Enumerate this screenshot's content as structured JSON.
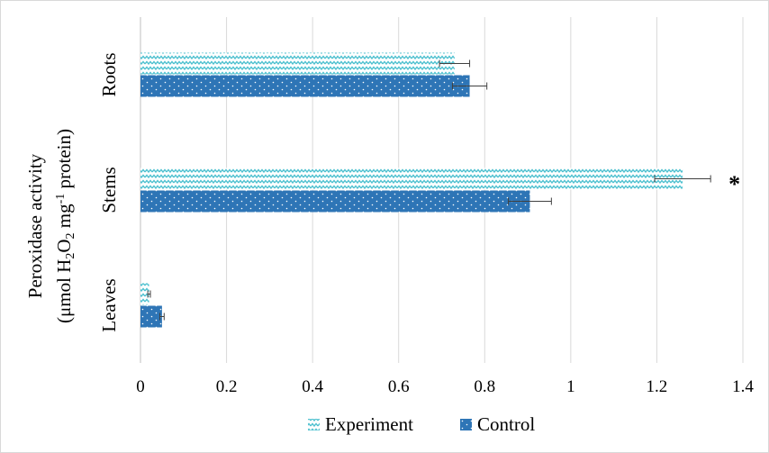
{
  "chart_data": {
    "type": "bar",
    "orientation": "horizontal",
    "ylabel_line1": "Peroxidase activity",
    "ylabel_line2": {
      "pre": "(μmol H",
      "sub1": "2",
      "mid1": "O",
      "sub2": "2",
      "mid2": " mg",
      "sup": "-1",
      "post": " protein)"
    },
    "categories": [
      "Roots",
      "Stems",
      "Leaves"
    ],
    "xlim": [
      0,
      1.4
    ],
    "xticks": [
      "0",
      "0.2",
      "0.4",
      "0.6",
      "0.8",
      "1",
      "1.2",
      "1.4"
    ],
    "xtick_values": [
      0,
      0.2,
      0.4,
      0.6,
      0.8,
      1.0,
      1.2,
      1.4
    ],
    "grid": "vertical",
    "legend_position": "bottom",
    "series": [
      {
        "name": "Experiment",
        "color": "#4bc0cf",
        "pattern": "zigzag",
        "values": [
          0.73,
          1.26,
          0.02
        ],
        "errors": [
          0.035,
          0.065,
          0.003
        ]
      },
      {
        "name": "Control",
        "color": "#2e75b6",
        "pattern": "dots",
        "values": [
          0.765,
          0.905,
          0.05
        ],
        "errors": [
          0.04,
          0.05,
          0.005
        ]
      }
    ],
    "annotations": [
      {
        "category": "Stems",
        "series": "Experiment",
        "text": "*"
      }
    ]
  }
}
